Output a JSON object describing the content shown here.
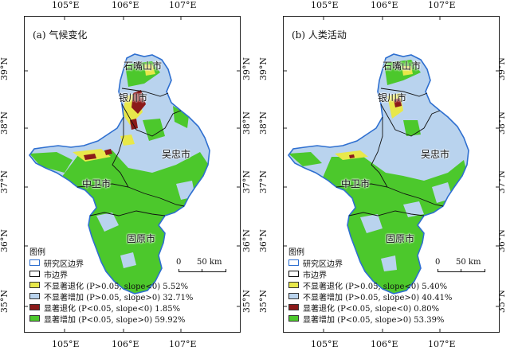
{
  "axes": {
    "lon_labels": [
      "105°E",
      "106°E",
      "107°E"
    ],
    "lat_labels": [
      "39°N",
      "38°N",
      "37°N",
      "36°N",
      "35°N"
    ]
  },
  "panels": [
    {
      "title": "(a) 气候变化",
      "cities": [
        "石嘴山市",
        "银川市",
        "吴忠市",
        "中卫市",
        "固原市"
      ],
      "legend_title": "图例",
      "legend": [
        {
          "label": "研究区边界",
          "color": "#ffffff",
          "edge": "#2e6fd0"
        },
        {
          "label": "市边界",
          "color": "#ffffff",
          "edge": "#111111"
        },
        {
          "label": "不显著退化 (P>0.05, slope<0) 5.52%",
          "color": "#e8e84a",
          "edge": "#555555"
        },
        {
          "label": "不显著增加 (P>0.05, slope>0) 32.71%",
          "color": "#b9d3ee",
          "edge": "#555555"
        },
        {
          "label": "显著退化 (P<0.05, slope<0) 1.85%",
          "color": "#8b1a1a",
          "edge": "#555555"
        },
        {
          "label": "显著增加 (P<0.05, slope>0) 59.92%",
          "color": "#4cc82c",
          "edge": "#555555"
        }
      ],
      "scale": {
        "zero": "0",
        "distance": "50 km"
      }
    },
    {
      "title": "(b) 人类活动",
      "cities": [
        "石嘴山市",
        "银川市",
        "吴忠市",
        "中卫市",
        "固原市"
      ],
      "legend_title": "图例",
      "legend": [
        {
          "label": "研究区边界",
          "color": "#ffffff",
          "edge": "#2e6fd0"
        },
        {
          "label": "市边界",
          "color": "#ffffff",
          "edge": "#111111"
        },
        {
          "label": "不显著退化 (P>0.05, slope<0) 5.40%",
          "color": "#e8e84a",
          "edge": "#555555"
        },
        {
          "label": "不显著增加 (P>0.05, slope>0) 40.41%",
          "color": "#b9d3ee",
          "edge": "#555555"
        },
        {
          "label": "显著退化 (P<0.05, slope<0) 0.80%",
          "color": "#8b1a1a",
          "edge": "#555555"
        },
        {
          "label": "显著增加 (P<0.05, slope>0) 53.39%",
          "color": "#4cc82c",
          "edge": "#555555"
        }
      ],
      "scale": {
        "zero": "0",
        "distance": "50 km"
      }
    }
  ]
}
